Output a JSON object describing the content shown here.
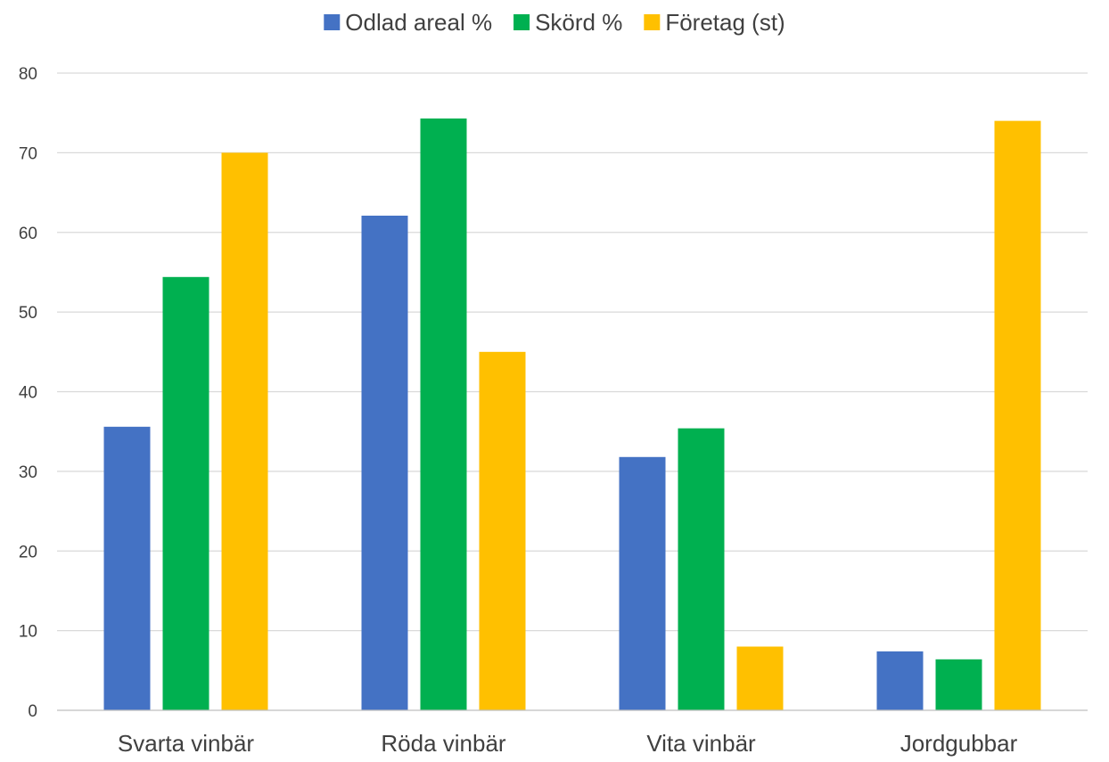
{
  "chart_data": {
    "type": "bar",
    "title": "",
    "xlabel": "",
    "ylabel": "",
    "categories": [
      "Svarta vinbär",
      "Röda vinbär",
      "Vita vinbär",
      "Jordgubbar"
    ],
    "series": [
      {
        "name": "Odlad areal %",
        "color": "#4472C4",
        "values": [
          35.6,
          62.1,
          31.8,
          7.4
        ]
      },
      {
        "name": "Skörd %",
        "color": "#00B050",
        "values": [
          54.4,
          74.3,
          35.4,
          6.4
        ]
      },
      {
        "name": "Företag (st)",
        "color": "#FFC000",
        "values": [
          70,
          45,
          8,
          74
        ]
      }
    ],
    "ylim": [
      0,
      80
    ],
    "yticks": [
      0,
      10,
      20,
      30,
      40,
      50,
      60,
      70,
      80
    ],
    "grid": true,
    "legend_position": "top-center"
  }
}
